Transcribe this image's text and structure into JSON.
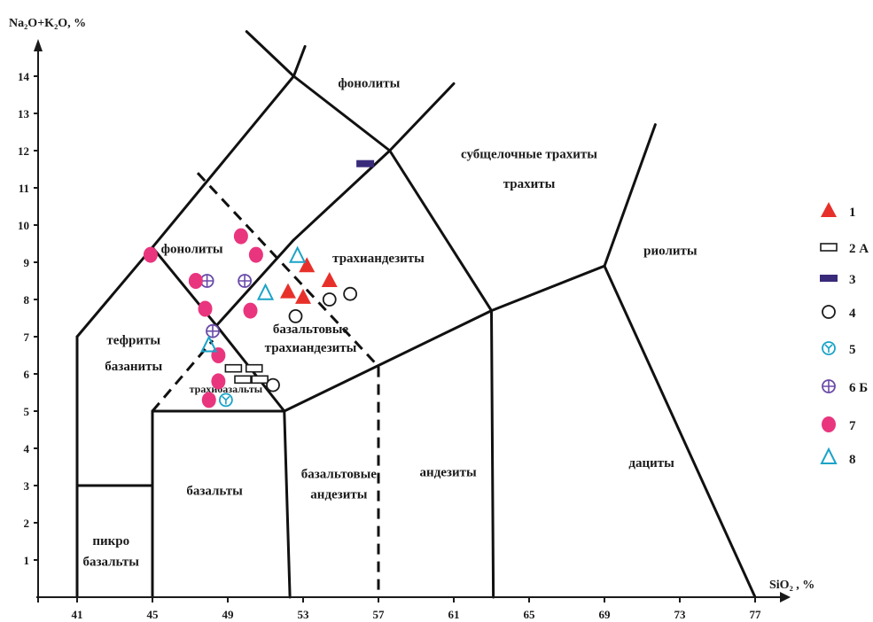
{
  "chart_data": {
    "type": "scatter",
    "xlabel": "SiO₂ , %",
    "ylabel": "Na₂O+K₂O, %",
    "xlim": [
      40,
      78
    ],
    "ylim": [
      0,
      15
    ],
    "x_ticks": [
      41,
      45,
      49,
      53,
      57,
      61,
      65,
      69,
      73,
      77
    ],
    "y_ticks": [
      1,
      2,
      3,
      4,
      5,
      6,
      7,
      8,
      9,
      10,
      11,
      12,
      13,
      14
    ],
    "grid": false,
    "legend_position": "right",
    "field_labels": [
      {
        "text": "фонолиты",
        "x": 56.5,
        "y": 13.7
      },
      {
        "text": "субщелочные трахиты",
        "x": 65,
        "y": 11.8
      },
      {
        "text": "трахиты",
        "x": 65,
        "y": 11.0
      },
      {
        "text": "риолиты",
        "x": 72.5,
        "y": 9.2
      },
      {
        "text": "трахиандезиты",
        "x": 57,
        "y": 9.0
      },
      {
        "text": "фонолиты",
        "x": 47.1,
        "y": 9.25
      },
      {
        "text": "базальтовые",
        "x": 53.4,
        "y": 7.1
      },
      {
        "text": "трахиандезиты",
        "x": 53.4,
        "y": 6.6
      },
      {
        "text": "тефриты",
        "x": 44,
        "y": 6.8
      },
      {
        "text": "базаниты",
        "x": 44,
        "y": 6.1
      },
      {
        "text": "трахибазальты",
        "x": 48.9,
        "y": 5.5
      },
      {
        "text": "базальты",
        "x": 48.3,
        "y": 2.75
      },
      {
        "text": "базальтовые",
        "x": 54.9,
        "y": 3.2
      },
      {
        "text": "андезиты",
        "x": 54.9,
        "y": 2.65
      },
      {
        "text": "андезиты",
        "x": 60.7,
        "y": 3.25
      },
      {
        "text": "дациты",
        "x": 71.5,
        "y": 3.5
      },
      {
        "text": "пикро",
        "x": 42.8,
        "y": 1.4
      },
      {
        "text": "базальты",
        "x": 42.8,
        "y": 0.85
      }
    ],
    "legend": [
      {
        "symbol": "filled-triangle",
        "label": "1"
      },
      {
        "symbol": "open-rect",
        "label": "2 А"
      },
      {
        "symbol": "filled-rect",
        "label": "3"
      },
      {
        "symbol": "open-circle",
        "label": "4"
      },
      {
        "symbol": "y-circle",
        "label": "5"
      },
      {
        "symbol": "cross-circle",
        "label": "6 Б"
      },
      {
        "symbol": "filled-circle",
        "label": "7"
      },
      {
        "symbol": "open-triangle",
        "label": "8"
      }
    ],
    "series": [
      {
        "name": "1",
        "marker": "filled-triangle",
        "color": "#e8302a",
        "points": [
          [
            52.2,
            8.2
          ],
          [
            53.0,
            8.05
          ],
          [
            53.2,
            8.9
          ],
          [
            54.4,
            8.5
          ]
        ]
      },
      {
        "name": "2 А",
        "marker": "open-rect",
        "color": "#1a1a1a",
        "points": [
          [
            49.3,
            6.15
          ],
          [
            50.4,
            6.15
          ],
          [
            49.8,
            5.85
          ],
          [
            50.7,
            5.85
          ]
        ]
      },
      {
        "name": "3",
        "marker": "filled-rect",
        "color": "#3a2a7a",
        "points": [
          [
            56.3,
            11.65
          ]
        ]
      },
      {
        "name": "4",
        "marker": "open-circle",
        "color": "#1a1a1a",
        "points": [
          [
            52.6,
            7.55
          ],
          [
            54.4,
            8.0
          ],
          [
            55.5,
            8.15
          ],
          [
            51.4,
            5.7
          ]
        ]
      },
      {
        "name": "5",
        "marker": "y-circle",
        "color": "#1aa3c8",
        "points": [
          [
            48.9,
            5.3
          ]
        ]
      },
      {
        "name": "6 Б",
        "marker": "cross-circle",
        "color": "#6a4aa8",
        "points": [
          [
            47.9,
            8.5
          ],
          [
            49.9,
            8.5
          ],
          [
            48.2,
            7.15
          ]
        ]
      },
      {
        "name": "7",
        "marker": "filled-circle",
        "color": "#e9357e",
        "points": [
          [
            44.9,
            9.2
          ],
          [
            49.7,
            9.7
          ],
          [
            50.5,
            9.2
          ],
          [
            47.3,
            8.5
          ],
          [
            47.8,
            7.75
          ],
          [
            50.2,
            7.7
          ],
          [
            48.5,
            6.5
          ],
          [
            48.5,
            5.8
          ],
          [
            48.0,
            5.3
          ]
        ]
      },
      {
        "name": "8",
        "marker": "open-triangle",
        "color": "#1aa3c8",
        "points": [
          [
            52.7,
            9.15
          ],
          [
            51.0,
            8.15
          ],
          [
            48.0,
            6.75
          ]
        ]
      }
    ]
  }
}
